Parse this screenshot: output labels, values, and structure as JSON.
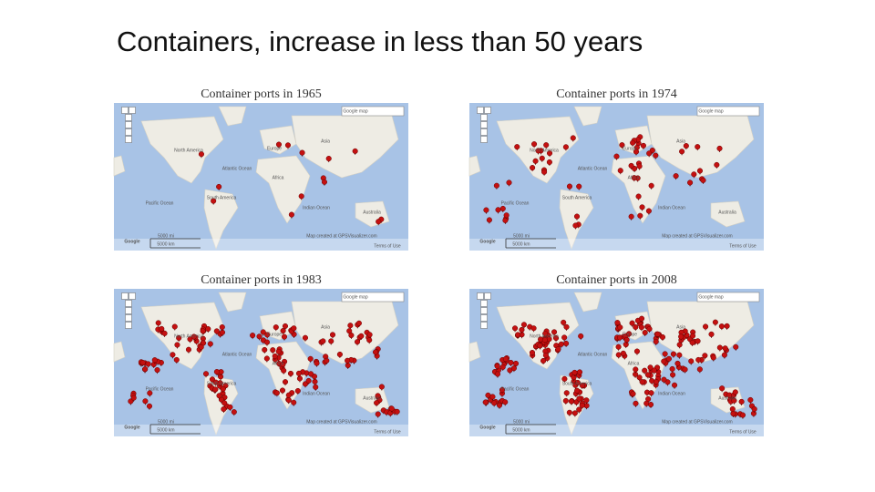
{
  "title": "Containers, increase in less than 50 years",
  "panels": [
    {
      "title": "Container ports in 1965",
      "labels": [
        "Asia",
        "Europe",
        "Africa",
        "North America",
        "South America",
        "Atlantic Ocean",
        "Pacific Ocean",
        "Indian Ocean",
        "Australia",
        "Google map",
        "5000 mi",
        "5000 km",
        "Map created at GPSVisualizer.com",
        "Terms of Use",
        "Google"
      ]
    },
    {
      "title": "Container ports in 1974",
      "labels": [
        "Asia",
        "Europe",
        "Africa",
        "North America",
        "South America",
        "Atlantic Ocean",
        "Pacific Ocean",
        "Indian Ocean",
        "Australia",
        "Google map",
        "5000 mi",
        "5000 km",
        "Map created at GPSVisualizer.com",
        "Terms of Use",
        "Google"
      ]
    },
    {
      "title": "Container ports in 1983",
      "labels": [
        "Asia",
        "Europe",
        "Africa",
        "North America",
        "South America",
        "Atlantic Ocean",
        "Pacific Ocean",
        "Indian Ocean",
        "Australia",
        "Google map",
        "5000 mi",
        "5000 km",
        "Map created at GPSVisualizer.com",
        "Terms of Use",
        "Google"
      ]
    },
    {
      "title": "Container ports in 2008",
      "labels": [
        "Asia",
        "Europe",
        "Africa",
        "North America",
        "South America",
        "Atlantic Ocean",
        "Pacific Ocean",
        "Indian Ocean",
        "Australia",
        "Google map",
        "5000 mi",
        "5000 km",
        "Map created at GPSVisualizer.com",
        "Terms of Use",
        "Google"
      ]
    }
  ]
}
